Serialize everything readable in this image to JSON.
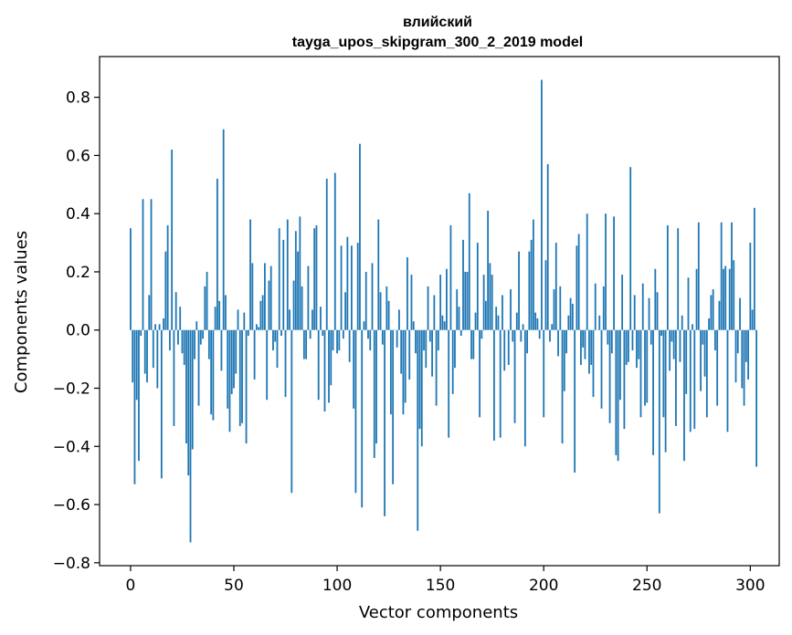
{
  "chart_data": {
    "type": "bar",
    "title_line1": "влийский",
    "title_line2": "tayga_upos_skipgram_300_2_2019 model",
    "xlabel": "Vector components",
    "ylabel": "Components values",
    "xlim": [
      -15,
      314
    ],
    "ylim": [
      -0.81,
      0.94
    ],
    "xticks": [
      0,
      50,
      100,
      150,
      200,
      250,
      300
    ],
    "xtick_labels": [
      "0",
      "50",
      "100",
      "150",
      "200",
      "250",
      "300"
    ],
    "yticks": [
      -0.8,
      -0.6,
      -0.4,
      -0.2,
      0.0,
      0.2,
      0.4,
      0.6,
      0.8
    ],
    "ytick_labels": [
      "−0.8",
      "−0.6",
      "−0.4",
      "−0.2",
      "0.0",
      "0.2",
      "0.4",
      "0.6",
      "0.8"
    ],
    "bar_color": "#1f77b4",
    "grid": false,
    "values": [
      0.35,
      -0.18,
      -0.53,
      -0.24,
      -0.45,
      -0.02,
      0.45,
      -0.15,
      -0.18,
      0.12,
      0.45,
      -0.13,
      0.02,
      -0.2,
      0.02,
      -0.51,
      0.04,
      0.27,
      0.36,
      -0.07,
      0.62,
      -0.33,
      0.13,
      -0.05,
      0.08,
      -0.08,
      -0.12,
      -0.39,
      -0.5,
      -0.73,
      -0.41,
      -0.1,
      0.03,
      -0.26,
      -0.05,
      -0.03,
      0.15,
      0.2,
      -0.1,
      -0.29,
      -0.31,
      0.08,
      0.52,
      0.1,
      -0.14,
      0.69,
      0.12,
      -0.27,
      -0.35,
      -0.22,
      -0.2,
      -0.15,
      0.07,
      -0.33,
      -0.32,
      0.06,
      -0.39,
      -0.02,
      0.38,
      0.23,
      -0.17,
      0.02,
      0.01,
      0.1,
      0.12,
      0.23,
      -0.24,
      0.17,
      0.22,
      -0.07,
      -0.04,
      -0.13,
      0.35,
      -0.02,
      0.31,
      -0.23,
      0.38,
      0.07,
      -0.56,
      0.17,
      0.34,
      0.27,
      0.39,
      0.15,
      -0.1,
      -0.1,
      0.22,
      -0.03,
      0.07,
      0.35,
      0.36,
      -0.24,
      0.08,
      -0.02,
      -0.28,
      0.52,
      -0.25,
      -0.19,
      -0.07,
      0.54,
      -0.08,
      -0.07,
      0.29,
      -0.03,
      0.13,
      0.32,
      -0.11,
      0.29,
      -0.27,
      -0.56,
      0.3,
      0.64,
      -0.61,
      0.03,
      0.2,
      -0.03,
      -0.07,
      0.23,
      -0.44,
      -0.39,
      0.38,
      0.13,
      -0.05,
      -0.64,
      0.15,
      0.1,
      -0.29,
      -0.53,
      0.0,
      -0.06,
      0.07,
      -0.15,
      -0.29,
      -0.25,
      0.25,
      -0.17,
      0.19,
      0.03,
      -0.08,
      -0.69,
      -0.34,
      -0.4,
      -0.07,
      -0.13,
      0.15,
      -0.04,
      -0.16,
      0.12,
      -0.26,
      -0.07,
      0.19,
      0.05,
      0.03,
      0.21,
      -0.37,
      0.36,
      -0.22,
      -0.13,
      0.14,
      0.08,
      -0.02,
      0.31,
      0.2,
      0.2,
      0.47,
      -0.1,
      -0.1,
      0.06,
      0.3,
      -0.3,
      -0.03,
      0.19,
      0.1,
      0.41,
      0.23,
      0.19,
      -0.38,
      0.08,
      0.05,
      -0.37,
      0.12,
      -0.14,
      0.0,
      -0.12,
      0.14,
      -0.04,
      -0.32,
      0.06,
      0.27,
      -0.04,
      0.02,
      -0.4,
      -0.08,
      0.27,
      0.31,
      0.38,
      0.06,
      0.04,
      -0.03,
      0.86,
      -0.3,
      0.24,
      0.57,
      -0.04,
      0.02,
      0.14,
      0.3,
      -0.09,
      0.15,
      -0.39,
      -0.21,
      -0.08,
      0.05,
      0.11,
      0.09,
      -0.49,
      0.29,
      0.33,
      -0.12,
      -0.06,
      -0.1,
      0.4,
      -0.15,
      -0.12,
      -0.23,
      0.16,
      0.0,
      0.05,
      -0.27,
      0.15,
      0.4,
      -0.05,
      -0.32,
      -0.08,
      0.39,
      -0.43,
      -0.45,
      -0.24,
      0.19,
      -0.34,
      -0.12,
      -0.11,
      0.56,
      -0.07,
      0.12,
      -0.13,
      -0.1,
      -0.3,
      0.16,
      -0.26,
      -0.25,
      0.11,
      -0.05,
      -0.43,
      0.21,
      0.13,
      -0.63,
      -0.02,
      -0.3,
      -0.42,
      0.36,
      -0.14,
      -0.04,
      -0.1,
      -0.33,
      0.35,
      -0.11,
      0.05,
      -0.45,
      -0.22,
      0.18,
      -0.35,
      0.02,
      -0.34,
      0.21,
      0.37,
      -0.21,
      -0.05,
      -0.16,
      -0.3,
      0.04,
      0.12,
      0.14,
      -0.07,
      -0.26,
      0.1,
      0.37,
      0.21,
      0.22,
      -0.35,
      0.21,
      0.37,
      0.24,
      -0.18,
      -0.08,
      0.11,
      -0.2,
      -0.26,
      -0.11,
      -0.17,
      0.3,
      0.07,
      0.42,
      -0.47
    ]
  }
}
